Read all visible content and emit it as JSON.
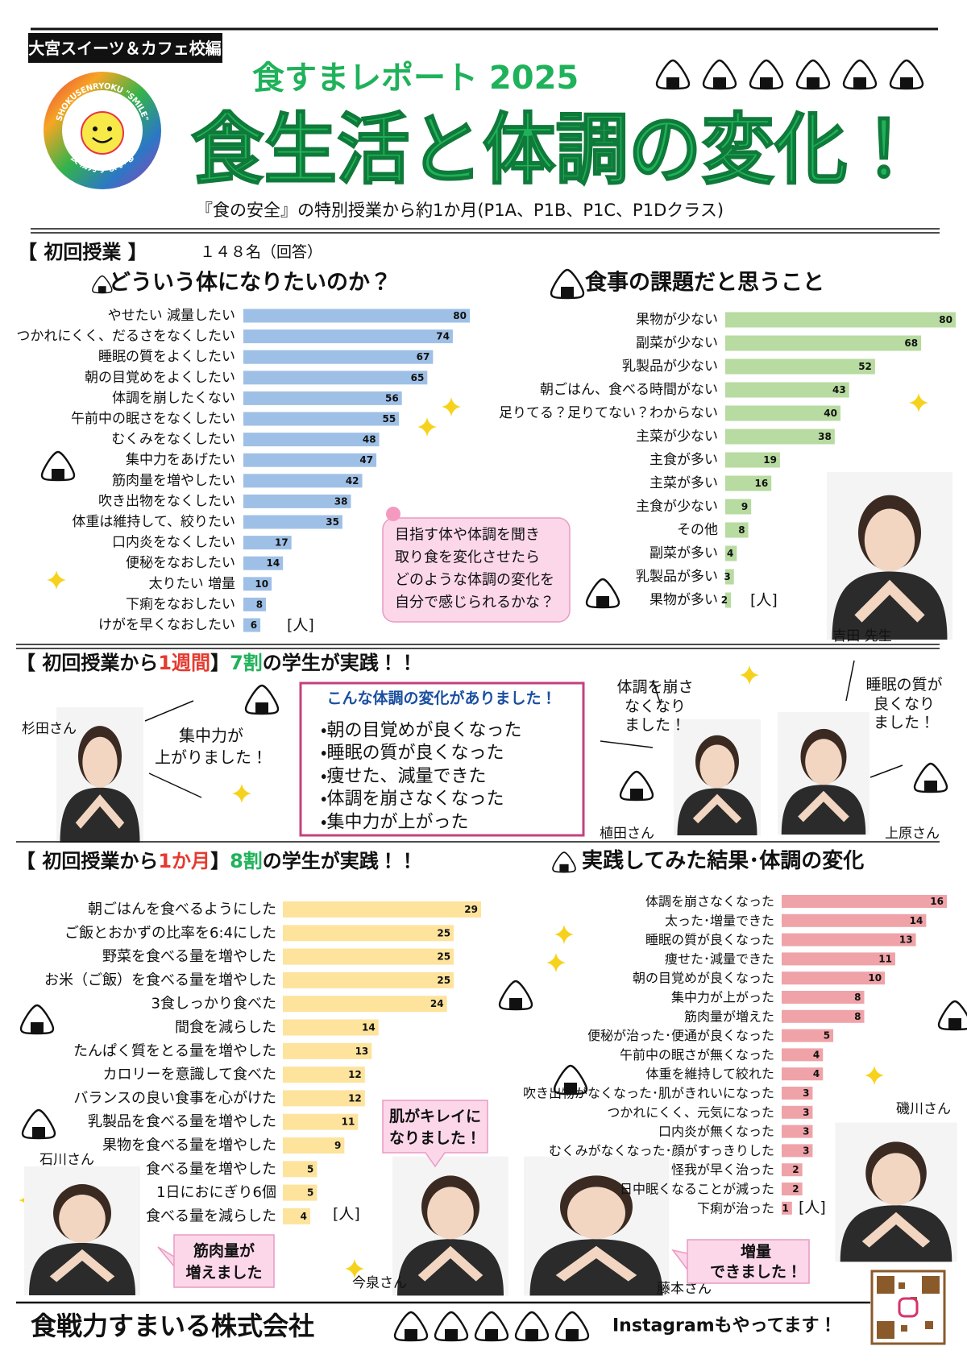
{
  "header": {
    "campus": "大宮スイーツ＆カフェ校編",
    "report": "食すまレポート 2025",
    "title": "食生活と体調の変化！",
    "subtitle": "『食の安全』の特別授業から約1か月(P1A、P1B、P1C、P1Dクラス)",
    "logo_top": "SHOKUSENRYOKU \"SMILE\"",
    "logo_bottom": "食戦力すまいる"
  },
  "section1": {
    "label": "【 初回授業 】",
    "respondents": "１４８名（回答）",
    "note": [
      "目指す体や体調を聞き",
      "取り食を変化させたら",
      "どのような体調の変化を",
      "自分で感じられるかな？"
    ],
    "teacher": "吉田 先生"
  },
  "section2": {
    "label_open": "【 初回授業から",
    "period": "1週間",
    "label_close": "】",
    "ratio": "7割",
    "label_tail": "の学生が実践！！",
    "box_title": "こんな体調の変化がありました！",
    "items": [
      "・朝の目覚めが良くなった",
      "・睡眠の質が良くなった",
      "・痩せた、減量できた",
      "・体調を崩さなくなった",
      "・集中力が上がった"
    ],
    "quotes": [
      {
        "name": "杉田さん",
        "lines": [
          "集中力が",
          "上がりました！"
        ]
      },
      {
        "name": "植田さん",
        "lines": [
          "体調を崩さ",
          "なくなり",
          "ました！"
        ]
      },
      {
        "name": "上原さん",
        "lines": [
          "睡眠の質が",
          "良くなり",
          "ました！"
        ]
      }
    ]
  },
  "section3": {
    "label_open": "【 初回授業から",
    "period": "1か月",
    "label_close": "】",
    "ratio": "8割",
    "label_tail": "の学生が実践！！",
    "quotes": [
      {
        "name": "石川さん",
        "lines": [
          "筋肉量が",
          "増えました"
        ]
      },
      {
        "name": "今泉さん",
        "lines": [
          "肌がキレイに",
          "なりました！"
        ]
      },
      {
        "name": "藤本さん"
      },
      {
        "name": "磯川さん",
        "lines": [
          "増量",
          "できました！"
        ]
      }
    ]
  },
  "chart_data": [
    {
      "type": "bar",
      "title": "どういう体になりたいのか？",
      "unit_label": "[人]",
      "color": "#9fc0e6",
      "categories": [
        "やせたい 減量したい",
        "つかれにくく、だるさをなくしたい",
        "睡眠の質をよくしたい",
        "朝の目覚めをよくしたい",
        "体調を崩したくない",
        "午前中の眠さをなくしたい",
        "むくみをなくしたい",
        "集中力をあげたい",
        "筋肉量を増やしたい",
        "吹き出物をなくしたい",
        "体重は維持して、絞りたい",
        "口内炎をなくしたい",
        "便秘をなおしたい",
        "太りたい 増量",
        "下痢をなおしたい",
        "けがを早くなおしたい"
      ],
      "values": [
        80,
        74,
        67,
        65,
        56,
        55,
        48,
        47,
        42,
        38,
        35,
        17,
        14,
        10,
        8,
        6
      ]
    },
    {
      "type": "bar",
      "title": "食事の課題だと思うこと",
      "unit_label": "[人]",
      "color": "#b7dba0",
      "categories": [
        "果物が少ない",
        "副菜が少ない",
        "乳製品が少ない",
        "朝ごはん、食べる時間がない",
        "足りてる？足りてない？わからない",
        "主菜が少ない",
        "主食が多い",
        "主菜が多い",
        "主食が少ない",
        "その他",
        "副菜が多い",
        "乳製品が多い",
        "果物が多い"
      ],
      "values": [
        80,
        68,
        52,
        43,
        40,
        38,
        19,
        16,
        9,
        8,
        4,
        3,
        2
      ]
    },
    {
      "type": "bar",
      "unit_label": "[人]",
      "color": "#fde39c",
      "categories": [
        "朝ごはんを食べるようにした",
        "ご飯とおかずの比率を6:4にした",
        "野菜を食べる量を増やした",
        "お米（ご飯）を食べる量を増やした",
        "3食しっかり食べた",
        "間食を減らした",
        "たんぱく質をとる量を増やした",
        "カロリーを意識して食べた",
        "バランスの良い食事を心がけた",
        "乳製品を食べる量を増やした",
        "果物を食べる量を増やした",
        "食べる量を増やした",
        "1日におにぎり6個",
        "食べる量を減らした"
      ],
      "values": [
        29,
        25,
        25,
        25,
        24,
        14,
        13,
        12,
        12,
        11,
        9,
        5,
        5,
        4
      ]
    },
    {
      "type": "bar",
      "title": "実践してみた結果･体調の変化",
      "unit_label": "[人]",
      "color": "#efa3a8",
      "categories": [
        "体調を崩さなくなった",
        "太った･増量できた",
        "睡眠の質が良くなった",
        "痩せた･減量できた",
        "朝の目覚めが良くなった",
        "集中力が上がった",
        "筋肉量が増えた",
        "便秘が治った･便通が良くなった",
        "午前中の眠さが無くなった",
        "体重を維持して絞れた",
        "吹き出物がなくなった･肌がきれいになった",
        "つかれにくく、元気になった",
        "口内炎が無くなった",
        "むくみがなくなった･顔がすっきりした",
        "怪我が早く治った",
        "日中眠くなることが減った",
        "下痢が治った"
      ],
      "values": [
        16,
        14,
        13,
        11,
        10,
        8,
        8,
        5,
        4,
        4,
        3,
        3,
        3,
        3,
        2,
        2,
        1
      ]
    }
  ],
  "footer": {
    "company": "食戦力すまいる株式会社",
    "instagram": "Instagramもやってます！"
  }
}
